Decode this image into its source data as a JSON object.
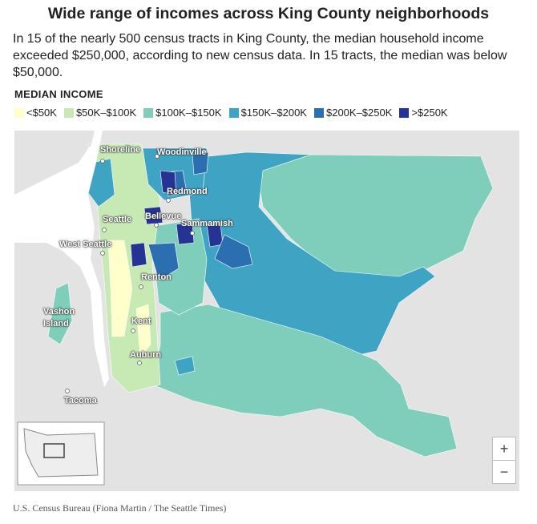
{
  "header": {
    "title": "Wide range of incomes across King County neighborhoods",
    "subtitle": "In 15 of the nearly 500 census tracts in King County, the median household income exceeded $250,000, according to new census data. In 15 tracts, the median was below $50,000."
  },
  "legend": {
    "title": "MEDIAN INCOME",
    "items": [
      {
        "label": "<$50K",
        "color": "#ffffcc"
      },
      {
        "label": "$50K–$100K",
        "color": "#c7e9b4"
      },
      {
        "label": "$100K–$150K",
        "color": "#7fcdbb"
      },
      {
        "label": "$150K–$200K",
        "color": "#3fa3c4"
      },
      {
        "label": "$200K–$250K",
        "color": "#2c6fb0"
      },
      {
        "label": ">$250K",
        "color": "#253494"
      }
    ]
  },
  "map": {
    "places": [
      "Shoreline",
      "Woodinville",
      "Redmond",
      "Seattle",
      "Bellevue",
      "Sammamish",
      "West Seattle",
      "Renton",
      "Vashon Island",
      "Kent",
      "Auburn",
      "Tacoma"
    ],
    "zoom_in": "+",
    "zoom_out": "−"
  },
  "source": "U.S. Census Bureau (Fiona Martin / The Seattle Times)"
}
